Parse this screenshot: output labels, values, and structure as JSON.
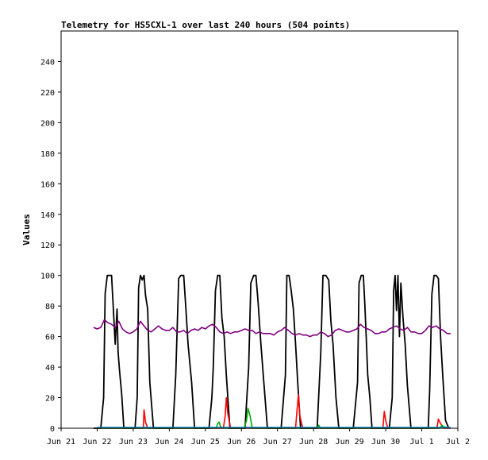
{
  "chart_data": {
    "type": "line",
    "title": "Telemetry for HS5CXL-1 over last 240 hours (504 points)",
    "ylabel": "Values",
    "xlabel": "",
    "ylim": [
      0,
      260
    ],
    "yticks": [
      0,
      20,
      40,
      60,
      80,
      100,
      120,
      140,
      160,
      180,
      200,
      220,
      240
    ],
    "xlim": [
      0,
      11
    ],
    "xticks": [
      {
        "x": 0,
        "label": "Jun 21"
      },
      {
        "x": 1,
        "label": "Jun 22"
      },
      {
        "x": 2,
        "label": "Jun 23"
      },
      {
        "x": 3,
        "label": "Jun 24"
      },
      {
        "x": 4,
        "label": "Jun 25"
      },
      {
        "x": 5,
        "label": "Jun 26"
      },
      {
        "x": 6,
        "label": "Jun 27"
      },
      {
        "x": 7,
        "label": "Jun 28"
      },
      {
        "x": 8,
        "label": "Jun 29"
      },
      {
        "x": 9,
        "label": "Jun 30"
      },
      {
        "x": 10,
        "label": "Jul 1"
      },
      {
        "x": 11,
        "label": "Jul 2"
      }
    ],
    "grid": false,
    "legend": "none",
    "series": [
      {
        "color": "#000000",
        "x": [
          0.9,
          1.1,
          1.18,
          1.22,
          1.28,
          1.34,
          1.4,
          1.5,
          1.55,
          1.58,
          1.62,
          1.68,
          1.74,
          1.86,
          1.92,
          2.05,
          2.11,
          2.15,
          2.2,
          2.25,
          2.3,
          2.34,
          2.4,
          2.46,
          2.56,
          2.66,
          3.0,
          3.1,
          3.18,
          3.26,
          3.32,
          3.4,
          3.46,
          3.52,
          3.62,
          3.7,
          4.0,
          4.1,
          4.18,
          4.22,
          4.28,
          4.34,
          4.4,
          4.46,
          4.52,
          4.58,
          4.68,
          4.78,
          5.0,
          5.1,
          5.2,
          5.26,
          5.34,
          5.4,
          5.46,
          5.54,
          5.62,
          5.72,
          5.8,
          6.0,
          6.1,
          6.22,
          6.26,
          6.32,
          6.38,
          6.44,
          6.5,
          6.56,
          6.64,
          6.72,
          7.0,
          7.1,
          7.2,
          7.26,
          7.34,
          7.42,
          7.48,
          7.54,
          7.62,
          7.7,
          8.0,
          8.1,
          8.22,
          8.26,
          8.32,
          8.38,
          8.42,
          8.46,
          8.5,
          8.56,
          8.62,
          8.7,
          9.0,
          9.1,
          9.18,
          9.22,
          9.26,
          9.3,
          9.34,
          9.38,
          9.42,
          9.48,
          9.54,
          9.6,
          9.7,
          10.0,
          10.1,
          10.18,
          10.22,
          10.28,
          10.34,
          10.4,
          10.46,
          10.52,
          10.58,
          10.66,
          10.75
        ],
        "y": [
          0,
          0,
          20,
          88,
          100,
          100,
          100,
          55,
          78,
          50,
          38,
          22,
          0,
          0,
          0,
          0,
          20,
          92,
          100,
          97,
          100,
          87,
          78,
          30,
          0,
          0,
          0,
          0,
          35,
          98,
          100,
          100,
          78,
          55,
          30,
          0,
          0,
          0,
          20,
          40,
          90,
          100,
          100,
          72,
          60,
          35,
          0,
          0,
          0,
          0,
          40,
          95,
          100,
          100,
          83,
          55,
          30,
          0,
          0,
          0,
          0,
          35,
          100,
          100,
          90,
          78,
          55,
          30,
          0,
          0,
          0,
          0,
          50,
          100,
          100,
          97,
          70,
          55,
          20,
          0,
          0,
          0,
          30,
          95,
          100,
          100,
          82,
          60,
          35,
          20,
          0,
          0,
          0,
          0,
          20,
          90,
          100,
          77,
          100,
          60,
          95,
          72,
          55,
          28,
          0,
          0,
          0,
          0,
          25,
          88,
          100,
          100,
          98,
          60,
          35,
          5,
          0
        ]
      },
      {
        "color": "#800080",
        "x": [
          0.9,
          1.0,
          1.1,
          1.2,
          1.3,
          1.4,
          1.5,
          1.6,
          1.7,
          1.8,
          1.9,
          2.0,
          2.1,
          2.2,
          2.3,
          2.4,
          2.5,
          2.6,
          2.7,
          2.8,
          2.9,
          3.0,
          3.1,
          3.2,
          3.3,
          3.4,
          3.5,
          3.6,
          3.7,
          3.8,
          3.9,
          4.0,
          4.1,
          4.2,
          4.3,
          4.4,
          4.5,
          4.6,
          4.7,
          4.8,
          4.9,
          5.0,
          5.1,
          5.2,
          5.3,
          5.4,
          5.5,
          5.6,
          5.7,
          5.8,
          5.9,
          6.0,
          6.1,
          6.2,
          6.3,
          6.4,
          6.5,
          6.6,
          6.7,
          6.8,
          6.9,
          7.0,
          7.1,
          7.2,
          7.3,
          7.4,
          7.5,
          7.6,
          7.7,
          7.8,
          7.9,
          8.0,
          8.1,
          8.2,
          8.3,
          8.4,
          8.5,
          8.6,
          8.7,
          8.8,
          8.9,
          9.0,
          9.1,
          9.2,
          9.3,
          9.4,
          9.5,
          9.6,
          9.7,
          9.8,
          9.9,
          10.0,
          10.1,
          10.2,
          10.3,
          10.4,
          10.5,
          10.6,
          10.7,
          10.8
        ],
        "y": [
          66,
          65,
          66,
          71,
          69,
          68,
          66,
          70,
          65,
          63,
          62,
          63,
          65,
          70,
          67,
          64,
          63,
          65,
          67,
          65,
          64,
          64,
          66,
          63,
          63,
          64,
          62,
          64,
          65,
          64,
          66,
          65,
          67,
          68,
          66,
          63,
          62,
          63,
          62,
          63,
          63,
          64,
          65,
          64,
          64,
          62,
          63,
          62,
          62,
          62,
          61,
          63,
          64,
          66,
          64,
          62,
          61,
          62,
          61,
          61,
          60,
          61,
          61,
          63,
          62,
          60,
          61,
          64,
          65,
          64,
          63,
          63,
          64,
          65,
          68,
          66,
          65,
          64,
          62,
          62,
          63,
          63,
          65,
          66,
          67,
          65,
          64,
          66,
          63,
          63,
          62,
          62,
          64,
          67,
          66,
          67,
          65,
          64,
          62,
          62
        ]
      },
      {
        "color": "#ff0000",
        "x": [
          1.0,
          2.28,
          2.3,
          2.34,
          2.4,
          4.5,
          4.55,
          4.58,
          4.62,
          4.7,
          6.5,
          6.54,
          6.58,
          6.62,
          6.7,
          8.92,
          8.96,
          9.0,
          9.06,
          10.42,
          10.46,
          10.52,
          10.6,
          10.8
        ],
        "y": [
          0,
          0,
          12,
          4,
          0,
          0,
          8,
          20,
          10,
          0,
          0,
          12,
          22,
          8,
          0,
          0,
          11,
          5,
          0,
          0,
          6,
          3,
          0,
          0
        ]
      },
      {
        "color": "#00aa00",
        "x": [
          1.0,
          4.3,
          4.34,
          4.38,
          4.42,
          4.5,
          5.08,
          5.14,
          5.18,
          5.24,
          5.3,
          7.0,
          7.1,
          7.14,
          7.2,
          10.5,
          10.56,
          10.6,
          10.8
        ],
        "y": [
          0,
          0,
          3,
          4,
          1,
          0,
          0,
          5,
          13,
          8,
          0,
          0,
          0,
          2,
          0,
          0,
          2,
          1,
          0
        ]
      },
      {
        "color": "#0088cc",
        "x": [
          1.0,
          10.8
        ],
        "y": [
          0.5,
          0.5
        ]
      }
    ]
  }
}
